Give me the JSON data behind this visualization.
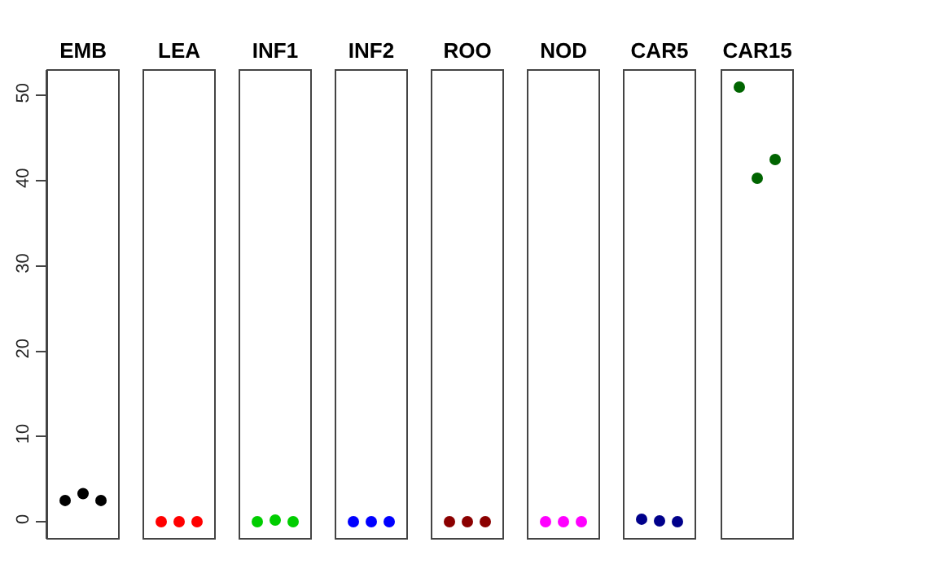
{
  "chart_data": [
    {
      "type": "scatter",
      "categories": [
        "EMB"
      ],
      "series": [
        {
          "color": "#000000",
          "values": [
            2.5
          ]
        },
        {
          "color": "#000000",
          "values": [
            3.3
          ]
        },
        {
          "color": "#000000",
          "values": [
            2.5
          ]
        }
      ],
      "ylim": [
        -2,
        53
      ],
      "yticks": [
        0,
        10,
        20,
        30,
        40,
        50
      ],
      "marker": "circle"
    },
    {
      "type": "scatter",
      "categories": [
        "LEA"
      ],
      "series": [
        {
          "color": "#ff0000",
          "values": [
            0
          ]
        },
        {
          "color": "#ff0000",
          "values": [
            0
          ]
        },
        {
          "color": "#ff0000",
          "values": [
            0
          ]
        }
      ],
      "ylim": [
        -2,
        53
      ],
      "yticks": [
        0,
        10,
        20,
        30,
        40,
        50
      ],
      "tick_labels": "x",
      "marker": "circle"
    },
    {
      "type": "scatter",
      "categories": [
        "INF1"
      ],
      "series": [
        {
          "color": "#00cd00",
          "values": [
            0
          ]
        },
        {
          "color": "#00cd00",
          "values": [
            0.2
          ]
        },
        {
          "color": "#00cd00",
          "values": [
            0
          ]
        }
      ],
      "ylim": [
        -2,
        53
      ],
      "yticks": [
        0,
        10,
        20,
        30,
        40,
        50
      ],
      "tick_labels": "x",
      "marker": "circle"
    },
    {
      "type": "scatter",
      "categories": [
        "INF2"
      ],
      "series": [
        {
          "color": "#0000ff",
          "values": [
            0
          ]
        },
        {
          "color": "#0000ff",
          "values": [
            0
          ]
        },
        {
          "color": "#0000ff",
          "values": [
            0
          ]
        }
      ],
      "ylim": [
        -2,
        53
      ],
      "yticks": [
        0,
        10,
        20,
        30,
        40,
        50
      ],
      "tick_labels": "x",
      "marker": "circle"
    },
    {
      "type": "scatter",
      "categories": [
        "ROO"
      ],
      "series": [
        {
          "color": "#8b0000",
          "values": [
            0
          ]
        },
        {
          "color": "#8b0000",
          "values": [
            0
          ]
        },
        {
          "color": "#8b0000",
          "values": [
            0
          ]
        }
      ],
      "ylim": [
        -2,
        53
      ],
      "yticks": [
        0,
        10,
        20,
        30,
        40,
        50
      ],
      "tick_labels": "x",
      "marker": "circle"
    },
    {
      "type": "scatter",
      "categories": [
        "NOD"
      ],
      "series": [
        {
          "color": "#ff00ff",
          "values": [
            0
          ]
        },
        {
          "color": "#ff00ff",
          "values": [
            0
          ]
        },
        {
          "color": "#ff00ff",
          "values": [
            0
          ]
        }
      ],
      "ylim": [
        -2,
        53
      ],
      "yticks": [
        0,
        10,
        20,
        30,
        40,
        50
      ],
      "tick_labels": "x",
      "marker": "circle"
    },
    {
      "type": "scatter",
      "categories": [
        "CAR5"
      ],
      "series": [
        {
          "color": "#00008b",
          "values": [
            0.3
          ]
        },
        {
          "color": "#00008b",
          "values": [
            0.1
          ]
        },
        {
          "color": "#00008b",
          "values": [
            0
          ]
        }
      ],
      "ylim": [
        -2,
        53
      ],
      "yticks": [
        0,
        10,
        20,
        30,
        40,
        50
      ],
      "tick_labels": "x",
      "marker": "circle"
    },
    {
      "type": "scatter",
      "categories": [
        "CAR15"
      ],
      "series": [
        {
          "color": "#006400",
          "values": [
            51
          ]
        },
        {
          "color": "#006400",
          "values": [
            40.3
          ]
        },
        {
          "color": "#006400",
          "values": [
            42.5
          ]
        }
      ],
      "ylim": [
        -2,
        53
      ],
      "yticks": [
        0,
        10,
        20,
        30,
        40,
        50
      ],
      "tick_labels": "x",
      "marker": "circle"
    }
  ]
}
